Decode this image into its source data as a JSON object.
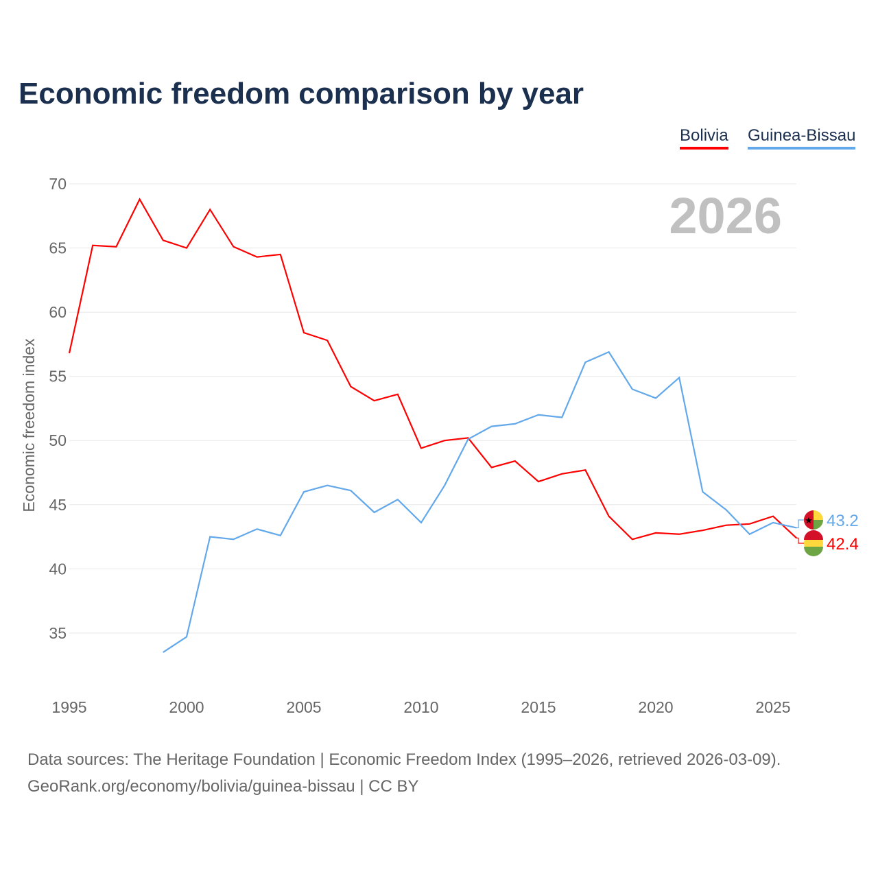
{
  "chart_data": {
    "type": "line",
    "title": "Economic freedom comparison by year",
    "ylabel": "Economic freedom index",
    "xlabel": "",
    "ylim": [
      31,
      71
    ],
    "xlim": [
      1995,
      2026
    ],
    "yticks": [
      35,
      40,
      45,
      50,
      55,
      60,
      65,
      70
    ],
    "xticks": [
      1995,
      2000,
      2005,
      2010,
      2015,
      2020,
      2025
    ],
    "grid": true,
    "legend_position": "top-right",
    "year_watermark": "2026",
    "series": [
      {
        "name": "Bolivia",
        "color": "#ff0000",
        "end_label": "42.4",
        "x": [
          1995,
          1996,
          1997,
          1998,
          1999,
          2000,
          2001,
          2002,
          2003,
          2004,
          2005,
          2006,
          2007,
          2008,
          2009,
          2010,
          2011,
          2012,
          2013,
          2014,
          2015,
          2016,
          2017,
          2018,
          2019,
          2020,
          2021,
          2022,
          2023,
          2024,
          2025,
          2026
        ],
        "values": [
          56.8,
          65.2,
          65.1,
          68.8,
          65.6,
          65.0,
          68.0,
          65.1,
          64.3,
          64.5,
          58.4,
          57.8,
          54.2,
          53.1,
          53.6,
          49.4,
          50.0,
          50.2,
          47.9,
          48.4,
          46.8,
          47.4,
          47.7,
          44.1,
          42.3,
          42.8,
          42.7,
          43.0,
          43.4,
          43.5,
          44.1,
          42.4
        ]
      },
      {
        "name": "Guinea-Bissau",
        "color": "#62a8ea",
        "end_label": "43.2",
        "x": [
          1999,
          2000,
          2001,
          2002,
          2003,
          2004,
          2005,
          2006,
          2007,
          2008,
          2009,
          2010,
          2011,
          2012,
          2013,
          2014,
          2015,
          2016,
          2017,
          2018,
          2019,
          2020,
          2021,
          2022,
          2023,
          2024,
          2025,
          2026
        ],
        "values": [
          33.5,
          34.7,
          42.5,
          42.3,
          43.1,
          42.6,
          46.0,
          46.5,
          46.1,
          44.4,
          45.4,
          43.6,
          46.5,
          50.1,
          51.1,
          51.3,
          52.0,
          51.8,
          56.1,
          56.9,
          54.0,
          53.3,
          54.9,
          46.0,
          44.6,
          42.7,
          43.6,
          43.2
        ]
      }
    ]
  },
  "source_line1": "Data sources: The Heritage Foundation | Economic Freedom Index (1995–2026, retrieved 2026-03-09).",
  "source_line2": "GeoRank.org/economy/bolivia/guinea-bissau | CC BY"
}
